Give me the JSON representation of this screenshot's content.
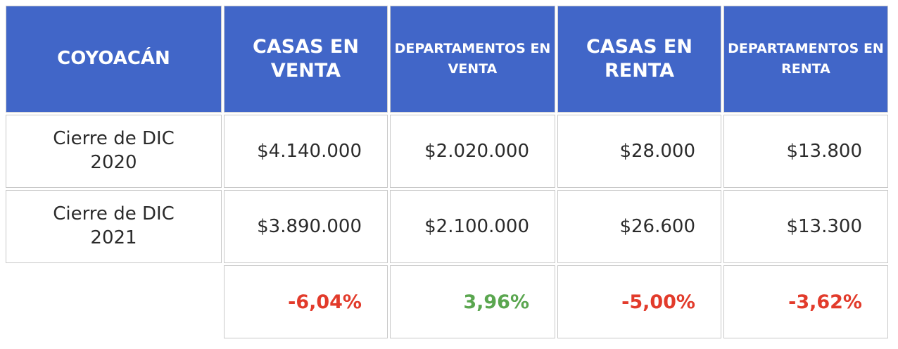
{
  "table": {
    "headers": [
      "COYOACÁN",
      "CASAS EN VENTA",
      "DEPARTAMENTOS EN VENTA",
      "CASAS EN RENTA",
      "DEPARTAMENTOS EN RENTA"
    ],
    "rows": [
      {
        "label": "Cierre de DIC 2020",
        "values": [
          "$4.140.000",
          "$2.020.000",
          "$28.000",
          "$13.800"
        ]
      },
      {
        "label": "Cierre de DIC 2021",
        "values": [
          "$3.890.000",
          "$2.100.000",
          "$26.600",
          "$13.300"
        ]
      }
    ],
    "changes": [
      {
        "value": "-6,04%",
        "color": "#e23b2b"
      },
      {
        "value": "3,96%",
        "color": "#5aa64f"
      },
      {
        "value": "-5,00%",
        "color": "#e23b2b"
      },
      {
        "value": "-3,62%",
        "color": "#e23b2b"
      }
    ]
  },
  "colors": {
    "header_bg": "#4166c8",
    "header_text": "#ffffff",
    "negative": "#e23b2b",
    "positive": "#5aa64f"
  }
}
